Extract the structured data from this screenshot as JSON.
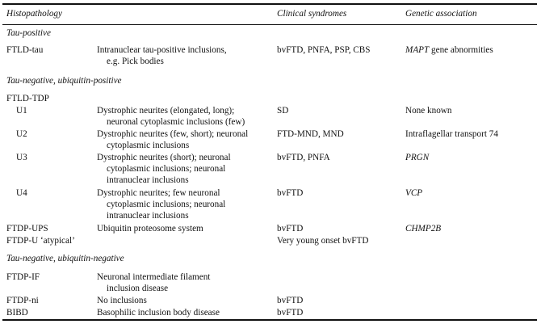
{
  "header": {
    "histopathology": "Histopathology",
    "clinical": "Clinical syndromes",
    "genetic": "Genetic association"
  },
  "rows": [
    {
      "type": "section",
      "label": "Tau-positive"
    },
    {
      "type": "row",
      "name": "FTLD-tau",
      "desc": [
        "Intranuclear tau-positive inclusions,",
        "e.g. Pick bodies"
      ],
      "clinical": "bvFTD, PNFA, PSP, CBS",
      "gene_italic": "MAPT",
      "gene_rest": " gene abnormities"
    },
    {
      "type": "section",
      "label": "Tau-negative, ubiquitin-positive"
    },
    {
      "type": "row",
      "name": "FTLD-TDP",
      "desc": []
    },
    {
      "type": "sub",
      "name": "U1",
      "desc": [
        "Dystrophic neurites (elongated, long);",
        "neuronal cytoplasmic inclusions (few)"
      ],
      "clinical": "SD",
      "gene_rest": "None known"
    },
    {
      "type": "sub",
      "name": "U2",
      "desc": [
        "Dystrophic neurites (few, short); neuronal",
        "cytoplasmic inclusions"
      ],
      "clinical": "FTD-MND, MND",
      "gene_rest": "Intraflagellar transport 74"
    },
    {
      "type": "sub",
      "name": "U3",
      "desc": [
        "Dystrophic neurites (short); neuronal",
        "cytoplasmic inclusions; neuronal",
        "intranuclear inclusions"
      ],
      "clinical": "bvFTD, PNFA",
      "gene_italic": "PRGN"
    },
    {
      "type": "sub",
      "name": "U4",
      "desc": [
        "Dystrophic neurites; few neuronal",
        "cytoplasmic inclusions; neuronal",
        "intranuclear inclusions"
      ],
      "clinical": "bvFTD",
      "gene_italic": "VCP"
    },
    {
      "type": "row",
      "name": "FTDP-UPS",
      "desc": [
        "Ubiquitin proteosome system"
      ],
      "clinical": "bvFTD",
      "gene_italic": "CHMP2B"
    },
    {
      "type": "row",
      "name": "FTDP-U ‘atypical’",
      "desc": [],
      "clinical": "Very young onset bvFTD"
    },
    {
      "type": "section",
      "label": "Tau-negative, ubiquitin-negative"
    },
    {
      "type": "row",
      "name": "FTDP-IF",
      "desc": [
        "Neuronal intermediate filament",
        "inclusion disease"
      ]
    },
    {
      "type": "row",
      "name": "FTDP-ni",
      "desc": [
        "No inclusions"
      ],
      "clinical": "bvFTD"
    },
    {
      "type": "row",
      "name": "BIBD",
      "desc": [
        "Basophilic inclusion body disease"
      ],
      "clinical": "bvFTD"
    }
  ]
}
